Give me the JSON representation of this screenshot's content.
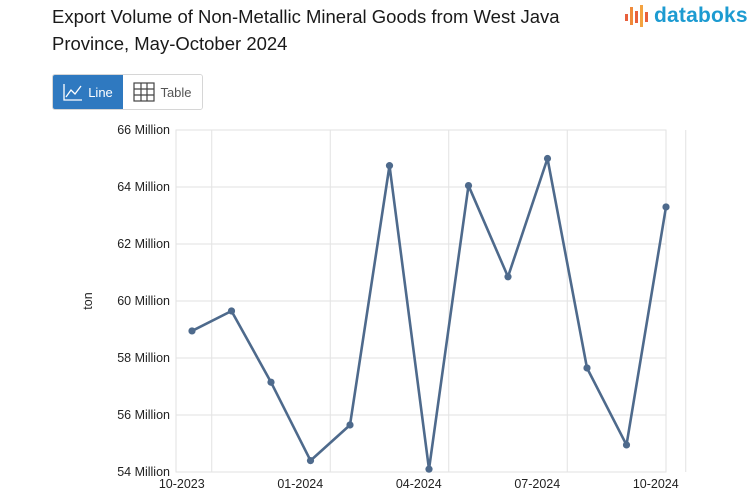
{
  "title": "Export Volume of Non-Metallic Mineral Goods from West Java Province, May-October 2024",
  "logo": {
    "text": "databoks",
    "color": "#1d9bd1",
    "icon": "bar-logo-icon"
  },
  "view_toggle": {
    "line_label": "Line",
    "table_label": "Table",
    "active": "line"
  },
  "chart_data": {
    "type": "line",
    "title": "Export Volume of Non-Metallic Mineral Goods from West Java Province, May-October 2024",
    "ylabel": "ton",
    "xlabel": "",
    "x": [
      "10-2023",
      "11-2023",
      "12-2023",
      "01-2024",
      "02-2024",
      "03-2024",
      "04-2024",
      "05-2024",
      "06-2024",
      "07-2024",
      "08-2024",
      "09-2024",
      "10-2024"
    ],
    "x_tick_labels": [
      "10-2023",
      "01-2024",
      "04-2024",
      "07-2024",
      "10-2024"
    ],
    "series": [
      {
        "values": [
          58.95,
          59.65,
          57.15,
          54.4,
          55.65,
          64.75,
          54.1,
          64.05,
          60.85,
          65.0,
          57.65,
          54.95,
          63.3
        ],
        "color": "#4e6a8c"
      }
    ],
    "ylim": [
      54,
      66
    ],
    "y_ticks": [
      54,
      56,
      58,
      60,
      62,
      64,
      66
    ],
    "y_tick_suffix": " Million",
    "grid": true
  }
}
